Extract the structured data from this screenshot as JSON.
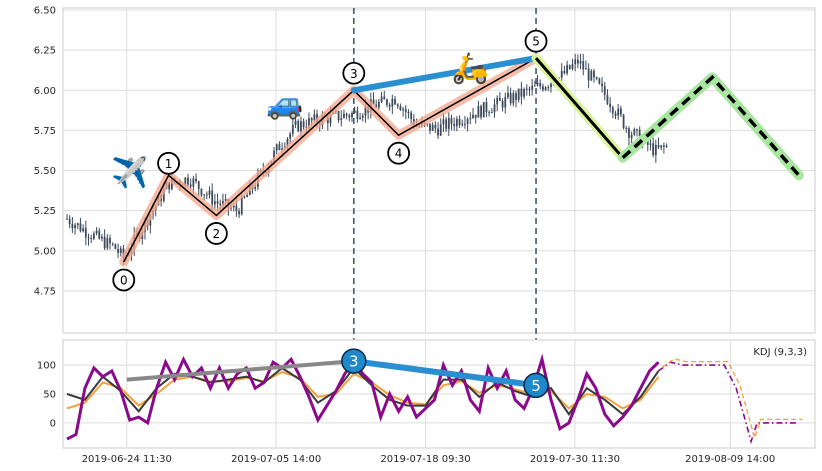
{
  "chart_data": [
    {
      "type": "candlestick",
      "panel": "price",
      "x_range": [
        0,
        240
      ],
      "ylim": [
        4.5,
        6.5
      ],
      "y_ticks": [
        "4.75",
        "5.00",
        "5.25",
        "5.50",
        "5.75",
        "6.00",
        "6.25",
        "6.50"
      ],
      "grid": true,
      "price_path": [
        [
          0,
          5.2
        ],
        [
          10,
          5.08
        ],
        [
          16,
          5.02
        ],
        [
          19,
          4.95
        ],
        [
          34,
          5.42
        ],
        [
          41,
          5.45
        ],
        [
          50,
          5.3
        ],
        [
          57,
          5.25
        ],
        [
          64,
          5.45
        ],
        [
          71,
          5.65
        ],
        [
          77,
          5.78
        ],
        [
          85,
          5.82
        ],
        [
          95,
          5.85
        ],
        [
          102,
          5.9
        ],
        [
          110,
          5.95
        ],
        [
          117,
          5.78
        ],
        [
          124,
          5.76
        ],
        [
          135,
          5.85
        ],
        [
          145,
          5.92
        ],
        [
          155,
          6.0
        ],
        [
          165,
          6.08
        ],
        [
          171,
          6.18
        ],
        [
          181,
          5.95
        ],
        [
          188,
          5.75
        ],
        [
          193,
          5.68
        ],
        [
          197,
          5.62
        ],
        [
          201,
          5.65
        ]
      ],
      "elliott_waves": {
        "labels": [
          "0",
          "1",
          "2",
          "3",
          "4",
          "5"
        ],
        "points": [
          [
            19,
            4.93
          ],
          [
            34,
            5.47
          ],
          [
            50,
            5.22
          ],
          [
            96,
            6.0
          ],
          [
            111,
            5.72
          ],
          [
            157,
            6.2
          ]
        ]
      },
      "corrective_abc": [
        [
          157,
          6.2
        ],
        [
          186,
          5.58
        ]
      ],
      "projection": [
        [
          186,
          5.58
        ],
        [
          216,
          6.08
        ],
        [
          245,
          5.47
        ]
      ],
      "trend_line": [
        [
          96,
          6.0
        ],
        [
          157,
          6.2
        ]
      ],
      "emoji_markers": [
        {
          "icon": "✈️",
          "wave": "1",
          "x": 21,
          "y": 5.5
        },
        {
          "icon": "🚙",
          "wave": "3",
          "x": 73,
          "y": 5.93
        },
        {
          "icon": "🛵",
          "wave": "5",
          "x": 135,
          "y": 6.15
        }
      ],
      "vlines": [
        96,
        157
      ]
    },
    {
      "type": "line",
      "panel": "indicator",
      "legend": "KDJ (9,3,3)",
      "x_ticks": [
        {
          "x": 20,
          "label": "2019-06-24 11:30"
        },
        {
          "x": 70,
          "label": "2019-07-05 14:00"
        },
        {
          "x": 120,
          "label": "2019-07-18 09:30"
        },
        {
          "x": 170,
          "label": "2019-07-30 11:30"
        },
        {
          "x": 222,
          "label": "2019-08-09 14:00"
        }
      ],
      "ylim": [
        -40,
        140
      ],
      "y_ticks": [
        "100",
        "50",
        "0"
      ],
      "grid": true,
      "j_path": [
        [
          0,
          -28
        ],
        [
          3,
          -20
        ],
        [
          6,
          60
        ],
        [
          9,
          95
        ],
        [
          12,
          80
        ],
        [
          15,
          90
        ],
        [
          18,
          55
        ],
        [
          21,
          5
        ],
        [
          24,
          10
        ],
        [
          27,
          0
        ],
        [
          30,
          60
        ],
        [
          33,
          105
        ],
        [
          36,
          75
        ],
        [
          39,
          110
        ],
        [
          42,
          80
        ],
        [
          45,
          95
        ],
        [
          48,
          60
        ],
        [
          51,
          95
        ],
        [
          54,
          60
        ],
        [
          57,
          85
        ],
        [
          60,
          95
        ],
        [
          63,
          60
        ],
        [
          66,
          70
        ],
        [
          69,
          105
        ],
        [
          72,
          95
        ],
        [
          75,
          110
        ],
        [
          78,
          80
        ],
        [
          81,
          45
        ],
        [
          84,
          5
        ],
        [
          87,
          30
        ],
        [
          90,
          55
        ],
        [
          93,
          85
        ],
        [
          96,
          107
        ],
        [
          99,
          85
        ],
        [
          102,
          70
        ],
        [
          105,
          10
        ],
        [
          108,
          50
        ],
        [
          111,
          20
        ],
        [
          114,
          45
        ],
        [
          117,
          10
        ],
        [
          120,
          25
        ],
        [
          123,
          40
        ],
        [
          126,
          100
        ],
        [
          129,
          65
        ],
        [
          132,
          90
        ],
        [
          135,
          40
        ],
        [
          138,
          20
        ],
        [
          141,
          95
        ],
        [
          144,
          60
        ],
        [
          147,
          90
        ],
        [
          150,
          40
        ],
        [
          153,
          25
        ],
        [
          156,
          60
        ],
        [
          159,
          110
        ],
        [
          162,
          40
        ],
        [
          165,
          -10
        ],
        [
          168,
          0
        ],
        [
          171,
          40
        ],
        [
          174,
          85
        ],
        [
          177,
          60
        ],
        [
          180,
          15
        ],
        [
          183,
          -5
        ],
        [
          186,
          10
        ],
        [
          189,
          30
        ],
        [
          192,
          60
        ],
        [
          195,
          90
        ],
        [
          198,
          105
        ]
      ],
      "k_path": [
        [
          0,
          50
        ],
        [
          6,
          40
        ],
        [
          12,
          80
        ],
        [
          18,
          55
        ],
        [
          24,
          20
        ],
        [
          30,
          60
        ],
        [
          36,
          85
        ],
        [
          42,
          80
        ],
        [
          48,
          70
        ],
        [
          54,
          75
        ],
        [
          60,
          80
        ],
        [
          66,
          70
        ],
        [
          72,
          95
        ],
        [
          78,
          75
        ],
        [
          84,
          35
        ],
        [
          90,
          55
        ],
        [
          96,
          95
        ],
        [
          102,
          65
        ],
        [
          108,
          40
        ],
        [
          114,
          30
        ],
        [
          120,
          30
        ],
        [
          126,
          75
        ],
        [
          132,
          75
        ],
        [
          138,
          45
        ],
        [
          144,
          70
        ],
        [
          150,
          55
        ],
        [
          156,
          45
        ],
        [
          162,
          60
        ],
        [
          168,
          15
        ],
        [
          174,
          60
        ],
        [
          180,
          40
        ],
        [
          186,
          15
        ],
        [
          192,
          45
        ],
        [
          198,
          90
        ]
      ],
      "d_path": [
        [
          0,
          25
        ],
        [
          6,
          35
        ],
        [
          12,
          70
        ],
        [
          18,
          60
        ],
        [
          24,
          30
        ],
        [
          30,
          50
        ],
        [
          36,
          75
        ],
        [
          42,
          80
        ],
        [
          48,
          72
        ],
        [
          54,
          72
        ],
        [
          60,
          78
        ],
        [
          66,
          72
        ],
        [
          72,
          88
        ],
        [
          78,
          78
        ],
        [
          84,
          45
        ],
        [
          90,
          50
        ],
        [
          96,
          85
        ],
        [
          102,
          70
        ],
        [
          108,
          48
        ],
        [
          114,
          35
        ],
        [
          120,
          32
        ],
        [
          126,
          65
        ],
        [
          132,
          72
        ],
        [
          138,
          52
        ],
        [
          144,
          65
        ],
        [
          150,
          58
        ],
        [
          156,
          50
        ],
        [
          162,
          55
        ],
        [
          168,
          25
        ],
        [
          174,
          50
        ],
        [
          180,
          45
        ],
        [
          186,
          25
        ],
        [
          192,
          40
        ],
        [
          198,
          80
        ]
      ],
      "j_projection": [
        [
          198,
          90
        ],
        [
          202,
          105
        ],
        [
          206,
          100
        ],
        [
          220,
          100
        ],
        [
          224,
          60
        ],
        [
          227,
          5
        ],
        [
          229,
          -32
        ],
        [
          231,
          0
        ],
        [
          245,
          0
        ]
      ],
      "trend_line": [
        [
          20,
          75
        ],
        [
          96,
          107
        ]
      ],
      "divergence_line": [
        [
          96,
          107
        ],
        [
          157,
          65
        ]
      ],
      "divergence_labels": [
        {
          "label": "3",
          "x": 96,
          "y": 107
        },
        {
          "label": "5",
          "x": 157,
          "y": 65
        }
      ],
      "vlines": [
        96,
        157
      ]
    }
  ]
}
